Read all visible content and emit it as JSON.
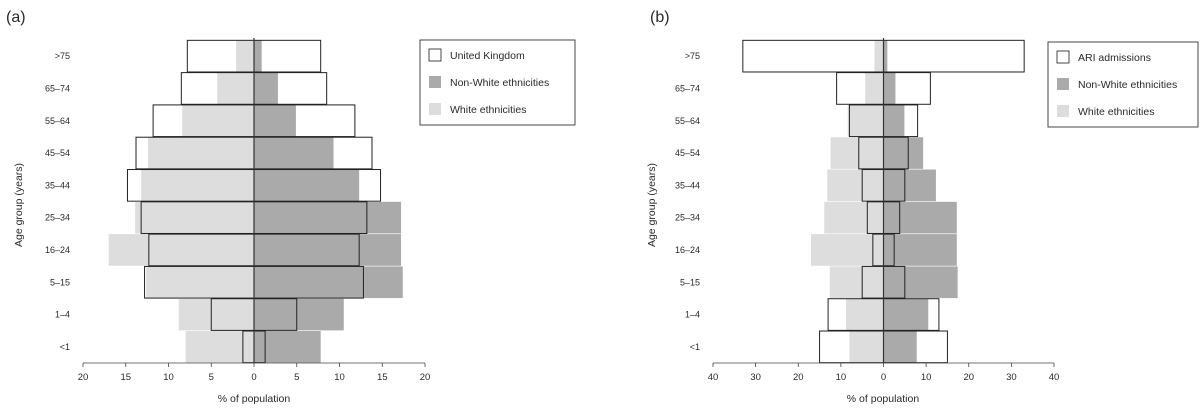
{
  "figure": {
    "panels": [
      {
        "label": "(a)",
        "ylabel": "Age group (years)",
        "xlabel": "% of population",
        "xticks": [
          "20",
          "15",
          "10",
          "5",
          "0",
          "5",
          "10",
          "15",
          "20"
        ],
        "legend": {
          "position": "top-right",
          "items": [
            {
              "label": "United Kingdom",
              "swatch": "outline"
            },
            {
              "label": "Non-White ethnicities",
              "swatch": "dark"
            },
            {
              "label": "White ethnicities",
              "swatch": "light"
            }
          ]
        }
      },
      {
        "label": "(b)",
        "ylabel": "Age group (years)",
        "xlabel": "% of population",
        "xticks": [
          "40",
          "30",
          "20",
          "10",
          "0",
          "10",
          "20",
          "30",
          "40"
        ],
        "legend": {
          "position": "top-right",
          "items": [
            {
              "label": "ARI admissions",
              "swatch": "outline"
            },
            {
              "label": "Non-White ethnicities",
              "swatch": "dark"
            },
            {
              "label": "White ethnicities",
              "swatch": "light"
            }
          ]
        }
      }
    ]
  },
  "chart_data": [
    {
      "type": "bar",
      "orientation": "horizontal",
      "layout": "population-pyramid",
      "categories": [
        ">75",
        "65–74",
        "55–64",
        "45–54",
        "35–44",
        "25–34",
        "16–24",
        "5–15",
        "1–4",
        "<1"
      ],
      "xlim": [
        -20,
        20
      ],
      "series": [
        {
          "name": "United Kingdom",
          "style": "outline",
          "values": [
            7.8,
            8.5,
            11.8,
            13.8,
            14.8,
            13.2,
            12.3,
            12.8,
            5.0,
            1.3
          ]
        },
        {
          "name": "Non-White ethnicities",
          "style": "dark",
          "values": [
            0.9,
            2.8,
            4.9,
            9.3,
            12.3,
            17.2,
            17.2,
            17.4,
            10.5,
            7.8
          ]
        },
        {
          "name": "White ethnicities",
          "style": "light",
          "values": [
            2.1,
            4.3,
            8.4,
            12.4,
            13.2,
            13.9,
            17.0,
            12.6,
            8.8,
            8.0
          ]
        }
      ],
      "grid": false,
      "legend": "top-right",
      "colors": {
        "dark": "#aaaaaa",
        "light": "#dddddd",
        "outline": "#222222"
      }
    },
    {
      "type": "bar",
      "orientation": "horizontal",
      "layout": "population-pyramid",
      "categories": [
        ">75",
        "65–74",
        "55–64",
        "45–54",
        "35–44",
        "25–34",
        "16–24",
        "5–15",
        "1–4",
        "<1"
      ],
      "xlim": [
        -40,
        40
      ],
      "series": [
        {
          "name": "ARI admissions",
          "style": "outline",
          "values": [
            33.0,
            11.0,
            8.0,
            5.8,
            5.0,
            3.8,
            2.5,
            5.0,
            13.0,
            15.0
          ]
        },
        {
          "name": "Non-White ethnicities",
          "style": "dark",
          "values": [
            0.9,
            2.8,
            4.9,
            9.3,
            12.3,
            17.2,
            17.2,
            17.4,
            10.5,
            7.8
          ]
        },
        {
          "name": "White ethnicities",
          "style": "light",
          "values": [
            2.1,
            4.3,
            8.4,
            12.4,
            13.2,
            13.9,
            17.0,
            12.6,
            8.8,
            8.0
          ]
        }
      ],
      "grid": false,
      "legend": "top-right",
      "colors": {
        "dark": "#aaaaaa",
        "light": "#dddddd",
        "outline": "#222222"
      }
    }
  ]
}
